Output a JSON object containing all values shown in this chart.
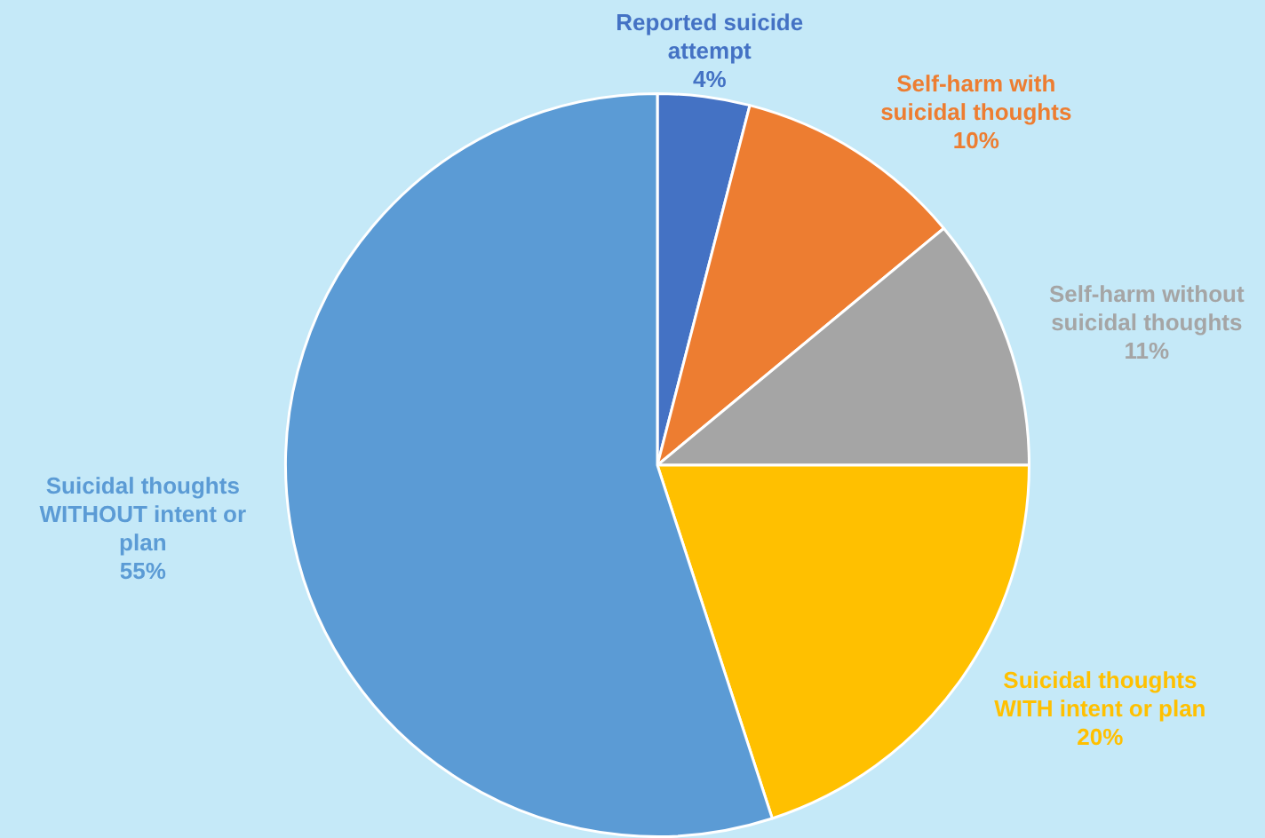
{
  "chart_data": {
    "type": "pie",
    "categories": [
      "Reported suicide attempt",
      "Self-harm with suicidal thoughts",
      "Self-harm without suicidal thoughts",
      "Suicidal thoughts WITH intent or plan",
      "Suicidal thoughts WITHOUT intent or plan"
    ],
    "values": [
      4,
      10,
      11,
      20,
      55
    ],
    "value_labels": [
      "4%",
      "10%",
      "11%",
      "20%",
      "55%"
    ],
    "colors": [
      "#4472c4",
      "#ed7d31",
      "#a5a5a5",
      "#ffc000",
      "#5b9bd5"
    ],
    "legend": false
  }
}
